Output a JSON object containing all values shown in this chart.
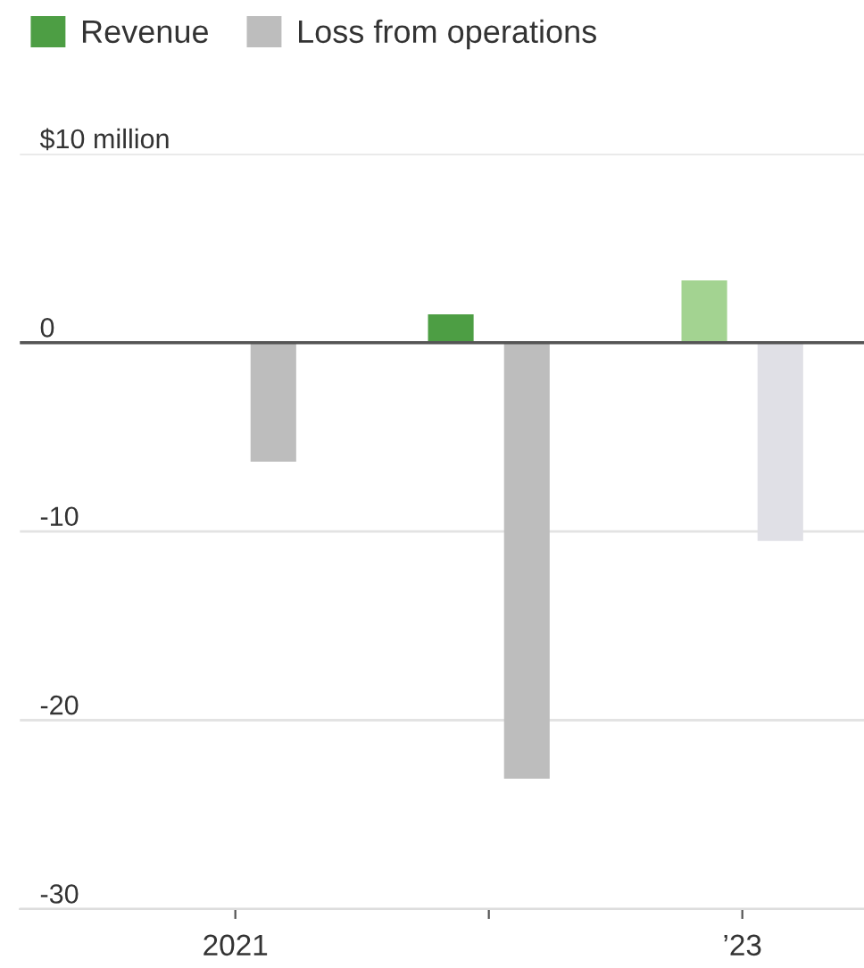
{
  "chart_data": {
    "type": "bar",
    "categories": [
      "2021",
      null,
      "’23"
    ],
    "series": [
      {
        "name": "Revenue",
        "color": "#4d9e44",
        "colors": [
          "#4d9e44",
          "#4d9e44",
          "#a3d391"
        ],
        "values": [
          null,
          1.5,
          3.3
        ]
      },
      {
        "name": "Loss from operations",
        "color": "#bdbdbd",
        "colors": [
          "#bdbdbd",
          "#bdbdbd",
          "#e0e0e6"
        ],
        "values": [
          -6.3,
          -23.1,
          -10.5
        ]
      }
    ],
    "ylim": [
      -30,
      10
    ],
    "yticks": [
      {
        "value": 10,
        "label": "$10 million"
      },
      0,
      -10,
      -20,
      -30
    ],
    "ref_lines": [
      {
        "axis": "y",
        "value": 0,
        "color": "#555555"
      }
    ],
    "grid": "y",
    "legend": "top left"
  }
}
